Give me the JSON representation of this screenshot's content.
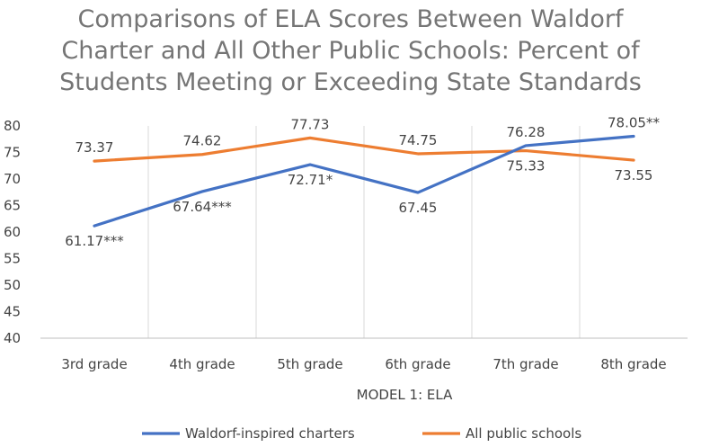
{
  "chart_data": {
    "type": "line",
    "title_lines": [
      "Comparisons of ELA Scores Between Waldorf",
      "Charter and All Other Public Schools: Percent of",
      "Students Meeting or Exceeding State Standards"
    ],
    "categories": [
      "3rd grade",
      "4th grade",
      "5th grade",
      "6th grade",
      "7th grade",
      "8th grade"
    ],
    "xlabel": "MODEL 1: ELA",
    "ylim": [
      40,
      80
    ],
    "yticks": [
      40,
      45,
      50,
      55,
      60,
      65,
      70,
      75,
      80
    ],
    "grid": true,
    "legend_position": "bottom",
    "series": [
      {
        "name": "Waldorf-inspired charters",
        "color": "#4472C4",
        "values": [
          61.17,
          67.64,
          72.71,
          67.45,
          76.28,
          78.05
        ],
        "labels": [
          "61.17***",
          "67.64***",
          "72.71*",
          "67.45",
          "76.28",
          "78.05**"
        ]
      },
      {
        "name": "All public schools",
        "color": "#ED7D31",
        "values": [
          73.37,
          74.62,
          77.73,
          74.75,
          75.33,
          73.55
        ],
        "labels": [
          "73.37",
          "74.62",
          "77.73",
          "74.75",
          "75.33",
          "73.55"
        ]
      }
    ]
  }
}
